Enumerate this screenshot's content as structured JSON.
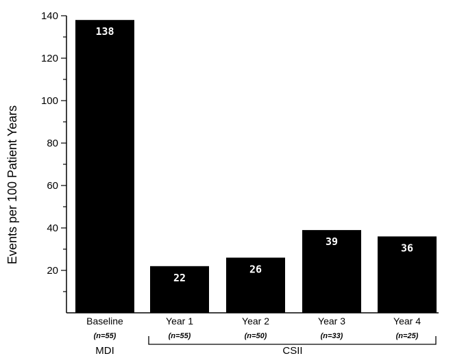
{
  "chart_data": {
    "type": "bar",
    "title": "",
    "xlabel": "",
    "ylabel": "Events per 100 Patient Years",
    "ylim": [
      0,
      140
    ],
    "yticks": [
      20,
      40,
      60,
      80,
      100,
      120,
      140
    ],
    "grid": false,
    "categories": [
      "Baseline",
      "Year 1",
      "Year 2",
      "Year 3",
      "Year 4"
    ],
    "sample_sizes": [
      "(n=55)",
      "(n=55)",
      "(n=50)",
      "(n=33)",
      "(n=25)"
    ],
    "values": [
      138,
      22,
      26,
      39,
      36
    ],
    "value_labels": [
      "138",
      "22",
      "26",
      "39",
      "36"
    ],
    "groups": [
      {
        "label": "MDI",
        "categories": [
          "Baseline"
        ]
      },
      {
        "label": "CSII",
        "categories": [
          "Year 1",
          "Year 2",
          "Year 3",
          "Year 4"
        ]
      }
    ],
    "bar_color": "#000000"
  }
}
